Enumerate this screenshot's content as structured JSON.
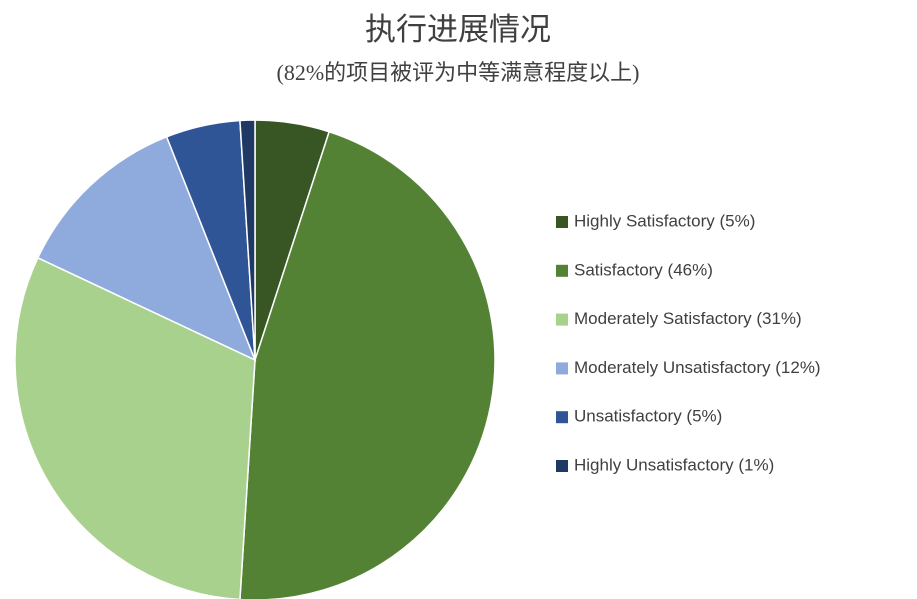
{
  "chart_data": {
    "type": "pie",
    "title": "执行进展情况",
    "subtitle": "(82%的项目被评为中等满意程度以上)",
    "categories": [
      "Highly Satisfactory (5%)",
      "Satisfactory (46%)",
      "Moderately Satisfactory (31%)",
      "Moderately Unsatisfactory (12%)",
      "Unsatisfactory (5%)",
      "Highly Unsatisfactory (1%)"
    ],
    "values": [
      5,
      46,
      31,
      12,
      5,
      1
    ],
    "colors": [
      "#375623",
      "#548235",
      "#a9d18e",
      "#8faadc",
      "#2f5597",
      "#203864"
    ],
    "legend": "right"
  }
}
